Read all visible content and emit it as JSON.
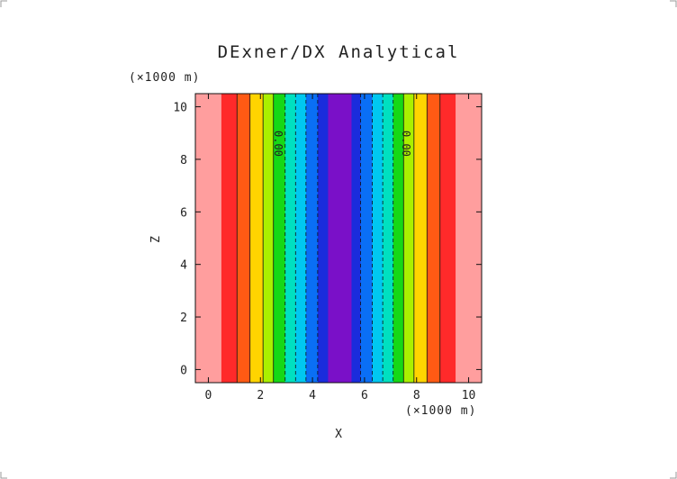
{
  "chart_data": {
    "type": "heatmap",
    "title": "DExner/DX Analytical",
    "xlabel": "X",
    "ylabel": "Z",
    "x_unit": "(×1000 m)",
    "z_unit": "(×1000 m)",
    "xlim": [
      -0.5,
      10.5
    ],
    "ylim": [
      -0.5,
      10.5
    ],
    "x_ticks": [
      "0",
      "2",
      "4",
      "6",
      "8",
      "10"
    ],
    "y_ticks": [
      "0",
      "2",
      "4",
      "6",
      "8",
      "10"
    ],
    "x_tick_values": [
      0,
      2,
      4,
      6,
      8,
      10
    ],
    "y_tick_values": [
      0,
      2,
      4,
      6,
      8,
      10
    ],
    "variation": "field varies only with X (vertical stripes), symmetric about X = 5",
    "bands": [
      {
        "x0": -0.5,
        "x1": 0.5,
        "color": "#ff9e9e"
      },
      {
        "x0": 0.5,
        "x1": 1.1,
        "color": "#ff2a2a"
      },
      {
        "x0": 1.1,
        "x1": 1.6,
        "color": "#ff5a14"
      },
      {
        "x0": 1.6,
        "x1": 2.1,
        "color": "#ffd400"
      },
      {
        "x0": 2.1,
        "x1": 2.5,
        "color": "#aaf000"
      },
      {
        "x0": 2.5,
        "x1": 2.95,
        "color": "#16d816"
      },
      {
        "x0": 2.95,
        "x1": 3.35,
        "color": "#00e0c0"
      },
      {
        "x0": 3.35,
        "x1": 3.75,
        "color": "#00c8f0"
      },
      {
        "x0": 3.75,
        "x1": 4.2,
        "color": "#0a6ff5"
      },
      {
        "x0": 4.2,
        "x1": 4.6,
        "color": "#1a2cdc"
      },
      {
        "x0": 4.6,
        "x1": 5.5,
        "color": "#7a10c8"
      },
      {
        "x0": 5.5,
        "x1": 5.85,
        "color": "#1a2cdc"
      },
      {
        "x0": 5.85,
        "x1": 6.3,
        "color": "#0a6ff5"
      },
      {
        "x0": 6.3,
        "x1": 6.7,
        "color": "#00c8f0"
      },
      {
        "x0": 6.7,
        "x1": 7.1,
        "color": "#00e0c0"
      },
      {
        "x0": 7.1,
        "x1": 7.5,
        "color": "#16d816"
      },
      {
        "x0": 7.5,
        "x1": 7.9,
        "color": "#aaf000"
      },
      {
        "x0": 7.9,
        "x1": 8.4,
        "color": "#ffd400"
      },
      {
        "x0": 8.4,
        "x1": 8.9,
        "color": "#ff5a14"
      },
      {
        "x0": 8.9,
        "x1": 9.5,
        "color": "#ff2a2a"
      },
      {
        "x0": 9.5,
        "x1": 10.5,
        "color": "#ff9e9e"
      }
    ],
    "contours": [
      {
        "x": 1.1,
        "style": "solid"
      },
      {
        "x": 1.6,
        "style": "solid"
      },
      {
        "x": 2.1,
        "style": "solid"
      },
      {
        "x": 2.5,
        "style": "solid"
      },
      {
        "x": 2.95,
        "style": "dashed"
      },
      {
        "x": 3.35,
        "style": "dashed"
      },
      {
        "x": 3.75,
        "style": "dashed"
      },
      {
        "x": 4.2,
        "style": "dashed"
      },
      {
        "x": 5.85,
        "style": "dashed"
      },
      {
        "x": 6.3,
        "style": "dashed"
      },
      {
        "x": 6.7,
        "style": "dashed"
      },
      {
        "x": 7.1,
        "style": "dashed"
      },
      {
        "x": 7.5,
        "style": "solid"
      },
      {
        "x": 7.9,
        "style": "solid"
      },
      {
        "x": 8.4,
        "style": "solid"
      },
      {
        "x": 8.9,
        "style": "solid"
      }
    ],
    "contour_labels": [
      {
        "text": "0.00",
        "x": 2.55,
        "z": 8.6
      },
      {
        "text": "0.00",
        "x": 7.45,
        "z": 8.6
      }
    ],
    "grid": false,
    "legend": "none"
  }
}
